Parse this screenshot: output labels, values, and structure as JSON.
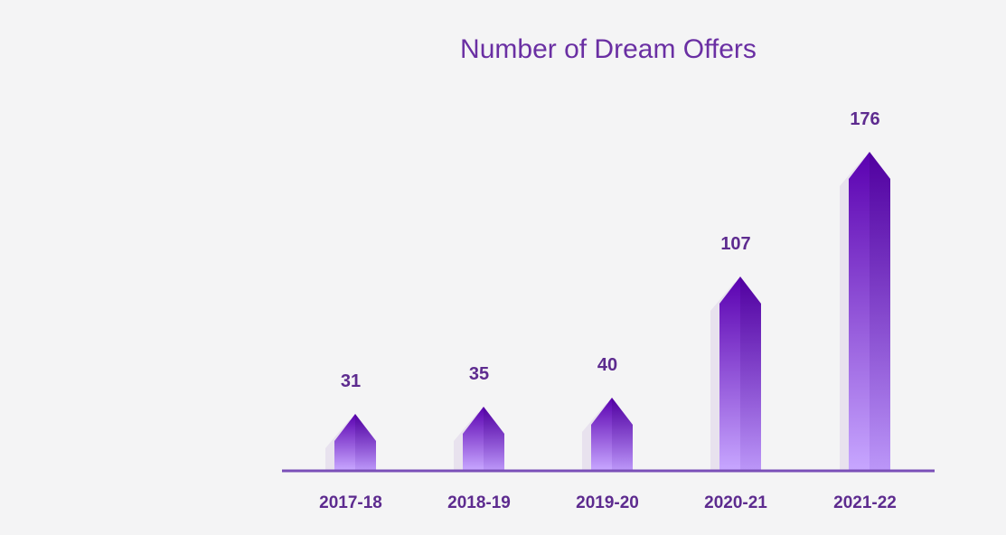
{
  "chart_data": {
    "type": "bar",
    "title": "Number of Dream Offers",
    "categories": [
      "2017-18",
      "2018-19",
      "2019-20",
      "2020-21",
      "2021-22"
    ],
    "values": [
      31,
      35,
      40,
      107,
      176
    ],
    "xlabel": "",
    "ylabel": "",
    "ylim": [
      0,
      176
    ],
    "grid": false,
    "legend": "none",
    "colors": {
      "bar_top": "#5a00b0",
      "bar_bottom": "#c7a6ff",
      "bar_shadow": "#e8e2ee",
      "axis": "#7a4fb8",
      "text": "#5d2b8f",
      "title": "#6a2fa3",
      "background": "#f4f4f5"
    }
  }
}
